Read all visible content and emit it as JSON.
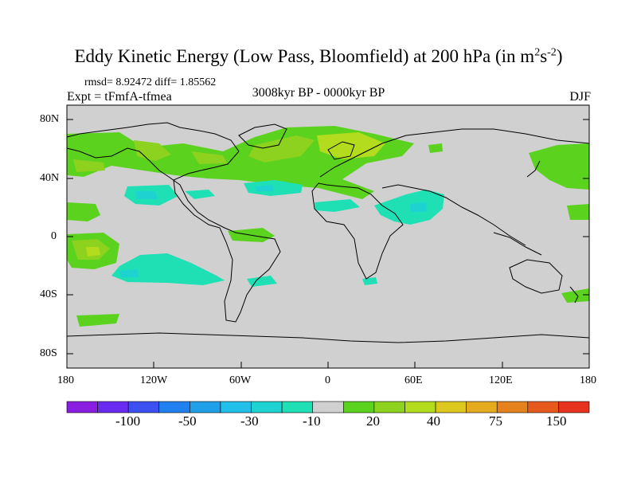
{
  "title": {
    "main": "Eddy Kinetic Energy (Low Pass, Bloomfield) at 200 hPa (in m",
    "sup1": "2",
    "s": "s",
    "sup2": "-2",
    "close": ")"
  },
  "stats": "rmsd= 8.92472 diff= 1.85562",
  "experiment": "Expt = tFmfA-tfmea",
  "period": "3008kyr BP - 0000kyr BP",
  "season": "DJF",
  "lat_ticks": [
    "80N",
    "40N",
    "0",
    "40S",
    "80S"
  ],
  "lon_ticks": [
    "180",
    "120W",
    "60W",
    "0",
    "60E",
    "120E",
    "180"
  ],
  "colorbar": {
    "colors": [
      "#8a1ee0",
      "#6a2bf0",
      "#3c50f0",
      "#2080f0",
      "#20a0e8",
      "#22c0e8",
      "#1ed2d2",
      "#1ee0b4",
      "#d0d0d0",
      "#5ad21e",
      "#8cd21e",
      "#b4dc1e",
      "#dcc81e",
      "#e6aa1e",
      "#e6821e",
      "#e65a1e",
      "#e6321e"
    ],
    "labels": [
      "-100",
      "-50",
      "-30",
      "-10",
      "20",
      "40",
      "75",
      "150"
    ]
  }
}
